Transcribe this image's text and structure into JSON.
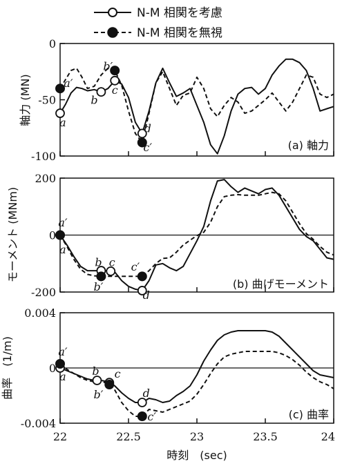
{
  "legend": {
    "solid_label": "N-M 相関を考慮",
    "dashed_label": "N-M 相関を無視",
    "placement": "top-center"
  },
  "xaxis": {
    "label": "時刻　(sec)",
    "ticks": [
      22,
      22.5,
      23,
      23.5,
      24
    ],
    "tick_labels": [
      "22",
      "22.5",
      "23",
      "23.5",
      "24"
    ]
  },
  "colors": {
    "line": "#111111",
    "background": "#ffffff"
  },
  "chart_data": [
    {
      "type": "line",
      "panel_label": "(a) 軸力",
      "ylabel": "軸力 (MN)",
      "xlim": [
        22,
        24
      ],
      "ylim": [
        -100,
        0
      ],
      "yticks": [
        0,
        -50,
        -100
      ],
      "ytick_labels": [
        "0",
        "-50",
        "-100"
      ],
      "baseline": null,
      "series": [
        {
          "style": "solid",
          "marker": "open-circle",
          "x": [
            22,
            22.04,
            22.08,
            22.12,
            22.16,
            22.2,
            22.25,
            22.3,
            22.35,
            22.4,
            22.45,
            22.5,
            22.55,
            22.6,
            22.65,
            22.7,
            22.75,
            22.8,
            22.85,
            22.9,
            22.95,
            23.0,
            23.05,
            23.1,
            23.15,
            23.2,
            23.25,
            23.3,
            23.35,
            23.4,
            23.45,
            23.5,
            23.55,
            23.6,
            23.65,
            23.7,
            23.75,
            23.8,
            23.85,
            23.9,
            23.95,
            24.0
          ],
          "y": [
            -62,
            -54,
            -44,
            -39,
            -40,
            -42,
            -41,
            -43,
            -40,
            -33,
            -36,
            -48,
            -70,
            -80,
            -60,
            -35,
            -22,
            -35,
            -47,
            -44,
            -40,
            -55,
            -70,
            -90,
            -98,
            -82,
            -60,
            -45,
            -40,
            -39,
            -45,
            -40,
            -28,
            -20,
            -14,
            -14,
            -17,
            -24,
            -40,
            -60,
            -58,
            -56
          ]
        },
        {
          "style": "dashed",
          "marker": "filled-circle",
          "x": [
            22,
            22.04,
            22.08,
            22.12,
            22.16,
            22.2,
            22.25,
            22.3,
            22.35,
            22.4,
            22.45,
            22.5,
            22.55,
            22.6,
            22.65,
            22.7,
            22.75,
            22.8,
            22.85,
            22.9,
            22.95,
            23.0,
            23.05,
            23.1,
            23.15,
            23.2,
            23.25,
            23.3,
            23.35,
            23.4,
            23.45,
            23.5,
            23.55,
            23.6,
            23.65,
            23.7,
            23.75,
            23.8,
            23.85,
            23.9,
            23.95,
            24.0
          ],
          "y": [
            -40,
            -32,
            -24,
            -22,
            -30,
            -40,
            -38,
            -28,
            -22,
            -24,
            -37,
            -60,
            -80,
            -88,
            -62,
            -35,
            -25,
            -40,
            -55,
            -46,
            -44,
            -30,
            -40,
            -58,
            -65,
            -55,
            -48,
            -52,
            -62,
            -60,
            -55,
            -50,
            -44,
            -52,
            -60,
            -52,
            -40,
            -28,
            -30,
            -45,
            -48,
            -45
          ]
        }
      ],
      "point_labels": [
        {
          "text": "a",
          "x": 22.02,
          "y": -70
        },
        {
          "text": "a′",
          "x": 22.06,
          "y": -35
        },
        {
          "text": "b",
          "x": 22.25,
          "y": -50
        },
        {
          "text": "b′",
          "x": 22.35,
          "y": -20
        },
        {
          "text": "c",
          "x": 22.4,
          "y": -41
        },
        {
          "text": "d",
          "x": 22.64,
          "y": -75
        },
        {
          "text": "c′",
          "x": 22.64,
          "y": -92
        }
      ]
    },
    {
      "type": "line",
      "panel_label": "(b) 曲げモーメント",
      "ylabel": "モーメント (MNm)",
      "xlim": [
        22,
        24
      ],
      "ylim": [
        -200,
        200
      ],
      "yticks": [
        200,
        0,
        -200
      ],
      "ytick_labels": [
        "200",
        "0",
        "-200"
      ],
      "baseline": 0,
      "series": [
        {
          "style": "solid",
          "marker": "open-circle",
          "x": [
            22,
            22.05,
            22.1,
            22.15,
            22.2,
            22.25,
            22.3,
            22.35,
            22.4,
            22.45,
            22.5,
            22.55,
            22.6,
            22.65,
            22.7,
            22.75,
            22.8,
            22.85,
            22.9,
            22.95,
            23.0,
            23.05,
            23.1,
            23.15,
            23.2,
            23.25,
            23.3,
            23.35,
            23.4,
            23.45,
            23.5,
            23.55,
            23.6,
            23.65,
            23.7,
            23.75,
            23.8,
            23.85,
            23.9,
            23.95,
            24.0
          ],
          "y": [
            0,
            -35,
            -75,
            -110,
            -125,
            -125,
            -125,
            -125,
            -130,
            -160,
            -180,
            -190,
            -195,
            -160,
            -105,
            -100,
            -115,
            -125,
            -110,
            -65,
            -20,
            30,
            120,
            190,
            195,
            170,
            150,
            165,
            155,
            145,
            160,
            165,
            140,
            100,
            60,
            20,
            -5,
            -20,
            -50,
            -80,
            -85
          ]
        },
        {
          "style": "dashed",
          "marker": "filled-circle",
          "x": [
            22,
            22.05,
            22.1,
            22.15,
            22.2,
            22.25,
            22.3,
            22.35,
            22.4,
            22.45,
            22.5,
            22.55,
            22.6,
            22.65,
            22.7,
            22.75,
            22.8,
            22.85,
            22.9,
            22.95,
            23.0,
            23.05,
            23.1,
            23.15,
            23.2,
            23.25,
            23.3,
            23.35,
            23.4,
            23.45,
            23.5,
            23.55,
            23.6,
            23.65,
            23.7,
            23.75,
            23.8,
            23.85,
            23.9,
            23.95,
            24.0
          ],
          "y": [
            0,
            -40,
            -85,
            -120,
            -138,
            -143,
            -145,
            -145,
            -145,
            -145,
            -145,
            -145,
            -145,
            -125,
            -100,
            -82,
            -80,
            -60,
            -35,
            -18,
            -2,
            10,
            45,
            100,
            135,
            140,
            142,
            140,
            140,
            140,
            145,
            150,
            145,
            120,
            80,
            40,
            5,
            -15,
            -40,
            -60,
            -70
          ]
        }
      ],
      "point_labels": [
        {
          "text": "a′",
          "x": 22.02,
          "y": 45
        },
        {
          "text": "a",
          "x": 22.02,
          "y": -50
        },
        {
          "text": "b",
          "x": 22.28,
          "y": -95
        },
        {
          "text": "c",
          "x": 22.38,
          "y": -95
        },
        {
          "text": "b′",
          "x": 22.28,
          "y": -180
        },
        {
          "text": "c′",
          "x": 22.55,
          "y": -110
        },
        {
          "text": "d",
          "x": 22.63,
          "y": -210
        }
      ]
    },
    {
      "type": "line",
      "panel_label": "(c) 曲率",
      "ylabel": "曲率　(1/m)",
      "xlim": [
        22,
        24
      ],
      "ylim": [
        -0.004,
        0.004
      ],
      "yticks": [
        0.004,
        0,
        -0.004
      ],
      "ytick_labels": [
        "0.004",
        "0",
        "-0.004"
      ],
      "baseline": 0,
      "series": [
        {
          "style": "solid",
          "marker": "open-circle",
          "x": [
            22,
            22.05,
            22.1,
            22.15,
            22.2,
            22.25,
            22.3,
            22.35,
            22.4,
            22.45,
            22.5,
            22.55,
            22.6,
            22.65,
            22.7,
            22.75,
            22.8,
            22.85,
            22.9,
            22.95,
            23.0,
            23.05,
            23.1,
            23.15,
            23.2,
            23.25,
            23.3,
            23.35,
            23.4,
            23.45,
            23.5,
            23.55,
            23.6,
            23.65,
            23.7,
            23.75,
            23.8,
            23.85,
            23.9,
            23.95,
            24.0
          ],
          "y": [
            0,
            -0.0002,
            -0.0004,
            -0.0006,
            -0.0008,
            -0.0009,
            -0.0009,
            -0.001,
            -0.0013,
            -0.0018,
            -0.0022,
            -0.0025,
            -0.0025,
            -0.0022,
            -0.0023,
            -0.0025,
            -0.0024,
            -0.002,
            -0.0017,
            -0.0013,
            -0.0005,
            0.0005,
            0.0013,
            0.002,
            0.0024,
            0.0026,
            0.0027,
            0.0027,
            0.0027,
            0.0027,
            0.0027,
            0.0026,
            0.0023,
            0.0018,
            0.0013,
            0.0008,
            0.0003,
            -0.0002,
            -0.0005,
            -0.0006,
            -0.0007
          ]
        },
        {
          "style": "dashed",
          "marker": "filled-circle",
          "x": [
            22,
            22.05,
            22.1,
            22.15,
            22.2,
            22.25,
            22.3,
            22.35,
            22.4,
            22.45,
            22.5,
            22.55,
            22.6,
            22.65,
            22.7,
            22.75,
            22.8,
            22.85,
            22.9,
            22.95,
            23.0,
            23.05,
            23.1,
            23.15,
            23.2,
            23.25,
            23.3,
            23.35,
            23.4,
            23.45,
            23.5,
            23.55,
            23.6,
            23.65,
            23.7,
            23.75,
            23.8,
            23.85,
            23.9,
            23.95,
            24.0
          ],
          "y": [
            0.0003,
            -0.0001,
            -0.0004,
            -0.0007,
            -0.0009,
            -0.001,
            -0.001,
            -0.0011,
            -0.0016,
            -0.0025,
            -0.0031,
            -0.0035,
            -0.0035,
            -0.003,
            -0.0031,
            -0.0032,
            -0.003,
            -0.0028,
            -0.0026,
            -0.0024,
            -0.0019,
            -0.0012,
            -0.0004,
            0.0003,
            0.0008,
            0.001,
            0.0011,
            0.0012,
            0.0012,
            0.0012,
            0.0012,
            0.0012,
            0.0011,
            0.0009,
            0.0006,
            0.0002,
            -0.0003,
            -0.0007,
            -0.001,
            -0.0012,
            -0.0015
          ]
        }
      ],
      "point_labels": [
        {
          "text": "a′",
          "x": 22.02,
          "y": 0.0012
        },
        {
          "text": "a",
          "x": 22.02,
          "y": -0.0006
        },
        {
          "text": "b",
          "x": 22.26,
          "y": -0.0002
        },
        {
          "text": "c",
          "x": 22.42,
          "y": -0.0004
        },
        {
          "text": "b′",
          "x": 22.28,
          "y": -0.0019
        },
        {
          "text": "d",
          "x": 22.63,
          "y": -0.0018
        },
        {
          "text": "c′",
          "x": 22.67,
          "y": -0.0035
        }
      ]
    }
  ]
}
